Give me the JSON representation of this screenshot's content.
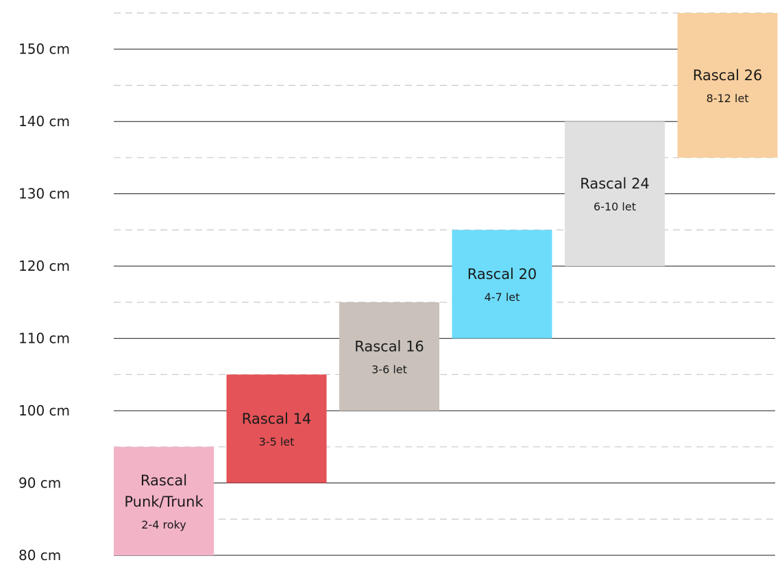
{
  "chart_data": {
    "type": "bar",
    "subtype": "floating-range",
    "y_unit": "cm",
    "ylim": [
      80,
      155
    ],
    "yticks": [
      {
        "value": 80,
        "label": "80 cm"
      },
      {
        "value": 90,
        "label": "90 cm"
      },
      {
        "value": 100,
        "label": "100 cm"
      },
      {
        "value": 110,
        "label": "110 cm"
      },
      {
        "value": 120,
        "label": "120 cm"
      },
      {
        "value": 130,
        "label": "130 cm"
      },
      {
        "value": 140,
        "label": "140 cm"
      },
      {
        "value": 150,
        "label": "150 cm"
      }
    ],
    "grid": {
      "major": true,
      "minor_dashed": true
    },
    "bars": [
      {
        "id": "punk-trunk",
        "name_lines": [
          "Rascal",
          "Punk/Trunk"
        ],
        "age": "2-4 roky",
        "min": 80,
        "max": 95,
        "color": "#f2b3c7"
      },
      {
        "id": "rascal-14",
        "name_lines": [
          "Rascal 14"
        ],
        "age": "3-5 let",
        "min": 90,
        "max": 105,
        "color": "#e35357"
      },
      {
        "id": "rascal-16",
        "name_lines": [
          "Rascal 16"
        ],
        "age": "3-6 let",
        "min": 100,
        "max": 115,
        "color": "#c9c1ba"
      },
      {
        "id": "rascal-20",
        "name_lines": [
          "Rascal 20"
        ],
        "age": "4-7 let",
        "min": 110,
        "max": 125,
        "color": "#6ddcfb"
      },
      {
        "id": "rascal-24",
        "name_lines": [
          "Rascal 24"
        ],
        "age": "6-10 let",
        "min": 120,
        "max": 140,
        "color": "#e0e0e0"
      },
      {
        "id": "rascal-26",
        "name_lines": [
          "Rascal 26"
        ],
        "age": "8-12 let",
        "min": 135,
        "max": 155,
        "color": "#f8cf9e"
      }
    ]
  }
}
